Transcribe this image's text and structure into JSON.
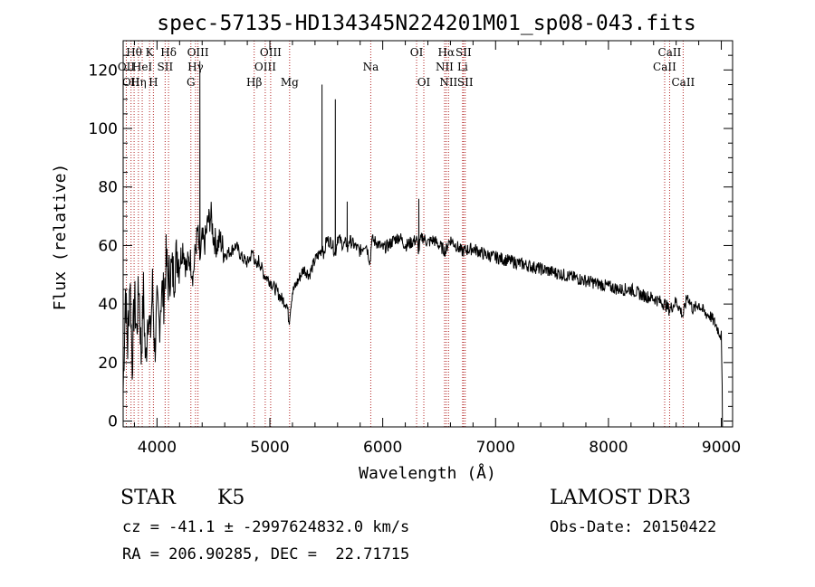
{
  "chart_data": {
    "type": "line",
    "title": "spec-57135-HD134345N224201M01_sp08-043.fits",
    "xlabel": "Wavelength (Å)",
    "ylabel": "Flux (relative)",
    "xlim": [
      3700,
      9100
    ],
    "ylim": [
      -2,
      130
    ],
    "x_ticks": [
      4000,
      5000,
      6000,
      7000,
      8000,
      9000
    ],
    "y_ticks": [
      0,
      20,
      40,
      60,
      80,
      100,
      120
    ],
    "series": [
      {
        "name": "flux",
        "x": [
          3700,
          3720,
          3740,
          3760,
          3780,
          3800,
          3820,
          3840,
          3860,
          3880,
          3900,
          3920,
          3940,
          3960,
          3980,
          4000,
          4020,
          4040,
          4060,
          4080,
          4100,
          4120,
          4150,
          4180,
          4200,
          4230,
          4260,
          4290,
          4320,
          4340,
          4360,
          4380,
          4400,
          4420,
          4450,
          4480,
          4500,
          4530,
          4560,
          4600,
          4650,
          4700,
          4750,
          4800,
          4850,
          4880,
          4900,
          4950,
          5000,
          5050,
          5100,
          5150,
          5170,
          5180,
          5200,
          5250,
          5300,
          5350,
          5400,
          5450,
          5470,
          5480,
          5500,
          5550,
          5580,
          5590,
          5600,
          5650,
          5680,
          5690,
          5700,
          5750,
          5800,
          5850,
          5890,
          5900,
          5950,
          6000,
          6050,
          6100,
          6150,
          6200,
          6250,
          6300,
          6320,
          6330,
          6350,
          6400,
          6450,
          6500,
          6560,
          6580,
          6600,
          6650,
          6700,
          6800,
          6900,
          7000,
          7100,
          7200,
          7300,
          7400,
          7500,
          7600,
          7700,
          7800,
          7900,
          8000,
          8100,
          8200,
          8300,
          8400,
          8500,
          8540,
          8600,
          8660,
          8700,
          8750,
          8800,
          8850,
          8900,
          8950,
          9000,
          9010
        ],
        "values": [
          10,
          45,
          25,
          50,
          20,
          42,
          30,
          48,
          22,
          44,
          18,
          40,
          28,
          46,
          24,
          38,
          33,
          45,
          42,
          55,
          48,
          52,
          50,
          58,
          54,
          60,
          52,
          56,
          50,
          58,
          65,
          55,
          62,
          60,
          68,
          70,
          63,
          60,
          62,
          57,
          58,
          60,
          56,
          54,
          58,
          52,
          55,
          50,
          48,
          45,
          42,
          40,
          34,
          38,
          44,
          48,
          52,
          50,
          55,
          58,
          60,
          56,
          62,
          61,
          57,
          60,
          63,
          60,
          61,
          58,
          62,
          60,
          58,
          61,
          54,
          62,
          61,
          59,
          60,
          62,
          63,
          60,
          61,
          62,
          58,
          61,
          63,
          61,
          62,
          60,
          58,
          61,
          62,
          60,
          58,
          59,
          57,
          56,
          55,
          54,
          53,
          52,
          51,
          50,
          49,
          48,
          47,
          46,
          45,
          45,
          43,
          42,
          40,
          38,
          41,
          36,
          43,
          38,
          40,
          37,
          36,
          33,
          29,
          5
        ]
      }
    ],
    "peaks": [
      {
        "x": 4380,
        "y": 123
      },
      {
        "x": 5462,
        "y": 115
      },
      {
        "x": 5580,
        "y": 110
      },
      {
        "x": 5685,
        "y": 75
      },
      {
        "x": 6320,
        "y": 76
      }
    ],
    "line_marks": [
      {
        "wavelength": 3728,
        "label": "OII",
        "row": 2
      },
      {
        "wavelength": 3770,
        "label": "OII",
        "row": 3
      },
      {
        "wavelength": 3797,
        "label": "Hθ",
        "row": 1
      },
      {
        "wavelength": 3835,
        "label": "Hη",
        "row": 3
      },
      {
        "wavelength": 3869,
        "label": "HeI",
        "row": 2
      },
      {
        "wavelength": 3934,
        "label": "K",
        "row": 1
      },
      {
        "wavelength": 3968,
        "label": "H",
        "row": 3
      },
      {
        "wavelength": 4072,
        "label": "SII",
        "row": 2
      },
      {
        "wavelength": 4102,
        "label": "Hδ",
        "row": 1
      },
      {
        "wavelength": 4300,
        "label": "G",
        "row": 3
      },
      {
        "wavelength": 4341,
        "label": "Hγ",
        "row": 2
      },
      {
        "wavelength": 4363,
        "label": "OIII",
        "row": 1
      },
      {
        "wavelength": 4861,
        "label": "Hβ",
        "row": 3
      },
      {
        "wavelength": 4959,
        "label": "OIII",
        "row": 2
      },
      {
        "wavelength": 5007,
        "label": "OIII",
        "row": 1
      },
      {
        "wavelength": 5175,
        "label": "Mg",
        "row": 3
      },
      {
        "wavelength": 5894,
        "label": "Na",
        "row": 2
      },
      {
        "wavelength": 6300,
        "label": "OI",
        "row": 1
      },
      {
        "wavelength": 6364,
        "label": "OI",
        "row": 3
      },
      {
        "wavelength": 6548,
        "label": "NII",
        "row": 2
      },
      {
        "wavelength": 6563,
        "label": "Hα",
        "row": 1
      },
      {
        "wavelength": 6583,
        "label": "NII",
        "row": 3
      },
      {
        "wavelength": 6708,
        "label": "Li",
        "row": 2
      },
      {
        "wavelength": 6716,
        "label": "SII",
        "row": 1
      },
      {
        "wavelength": 6731,
        "label": "SII",
        "row": 3
      },
      {
        "wavelength": 8498,
        "label": "CaII",
        "row": 2
      },
      {
        "wavelength": 8542,
        "label": "CaII",
        "row": 1
      },
      {
        "wavelength": 8662,
        "label": "CaII",
        "row": 3
      }
    ]
  },
  "footer": {
    "object_class": "STAR",
    "subclass": "K5",
    "redshift_text": "cz = -41.1 ± -2997624832.0 km/s",
    "coords_text": "RA = 206.90285, DEC =  22.71715",
    "survey": "LAMOST DR3",
    "obs_date": "Obs-Date: 20150422"
  },
  "colors": {
    "axes": "#000000",
    "spectrum": "#000000",
    "line_marks": "#b22222"
  }
}
